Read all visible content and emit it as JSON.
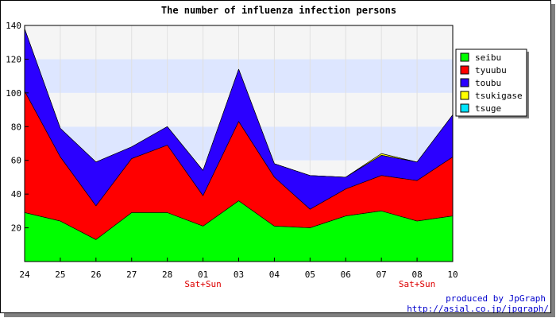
{
  "chart_data": {
    "type": "area",
    "stacked": true,
    "title": "The number of influenza infection persons",
    "categories": [
      "24",
      "25",
      "26",
      "27",
      "28",
      "01",
      "03",
      "04",
      "05",
      "06",
      "07",
      "08",
      "10"
    ],
    "sublabels": [
      "",
      "",
      "",
      "",
      "",
      "Sat+Sun",
      "",
      "",
      "",
      "",
      "",
      "Sat+Sun",
      ""
    ],
    "ylim": [
      0,
      140
    ],
    "yticks": [
      20,
      40,
      60,
      80,
      100,
      120,
      140
    ],
    "legend_position": "right",
    "series": [
      {
        "name": "seibu",
        "color": "#00ff00",
        "values": [
          29,
          24,
          13,
          29,
          29,
          21,
          36,
          21,
          20,
          27,
          30,
          24,
          27
        ]
      },
      {
        "name": "tyuubu",
        "color": "#ff0000",
        "values": [
          72,
          38,
          20,
          32,
          40,
          18,
          47,
          29,
          11,
          16,
          21,
          24,
          35
        ]
      },
      {
        "name": "toubu",
        "color": "#2b00ff",
        "values": [
          37,
          17,
          26,
          7,
          11,
          15,
          31,
          8,
          20,
          7,
          12,
          11,
          25
        ]
      },
      {
        "name": "tsukigase",
        "color": "#ffff00",
        "values": [
          0,
          0,
          0,
          0,
          0,
          0,
          0,
          0,
          0,
          0,
          1,
          0,
          0
        ]
      },
      {
        "name": "tsuge",
        "color": "#00e5ff",
        "values": [
          0,
          0,
          0,
          0,
          0,
          0,
          0,
          0,
          0,
          0,
          0,
          0,
          0
        ]
      }
    ]
  },
  "credit": {
    "line1": "produced by JpGraph",
    "line2": "http://asial.co.jp/jpgraph/"
  }
}
